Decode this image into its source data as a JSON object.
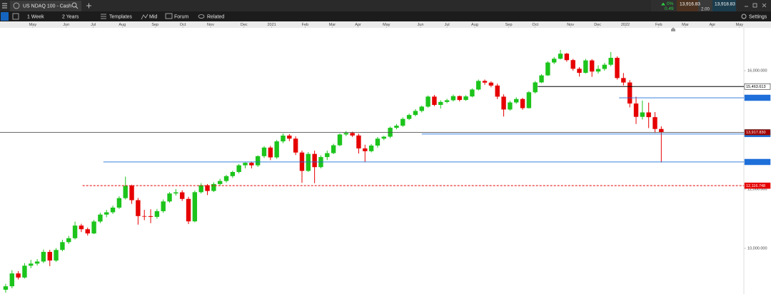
{
  "app": {
    "tab_title": "US NDAQ 100 - Cash",
    "quote": {
      "change": "0%",
      "change_value": "0.49",
      "sell": "13,916.83",
      "spread": "2.00",
      "buy": "13,918.83"
    }
  },
  "toolbar": {
    "interval": "1 Week",
    "range": "2 Years",
    "templates": "Templates",
    "price_type": "Mid",
    "forum": "Forum",
    "related": "Related",
    "settings": "Settings"
  },
  "chart_data": {
    "type": "candlestick",
    "up_color": "#1cc41c",
    "down_color": "#e60000",
    "xlim": [
      -0.9,
      117.1
    ],
    "ylim": [
      8457.8,
      17445.8
    ],
    "xticks": [
      {
        "value": 4.3,
        "label": "May"
      },
      {
        "value": 9.6,
        "label": "Jun"
      },
      {
        "value": 13.9,
        "label": "Jul"
      },
      {
        "value": 18.5,
        "label": "Aug"
      },
      {
        "value": 23.7,
        "label": "Sep"
      },
      {
        "value": 28.1,
        "label": "Oct"
      },
      {
        "value": 32.5,
        "label": "Nov"
      },
      {
        "value": 37.8,
        "label": "Dec"
      },
      {
        "value": 42.2,
        "label": "2021"
      },
      {
        "value": 47.5,
        "label": "Feb"
      },
      {
        "value": 51.8,
        "label": "Mar"
      },
      {
        "value": 55.9,
        "label": "Apr"
      },
      {
        "value": 60.4,
        "label": "May"
      },
      {
        "value": 65.8,
        "label": "Jun"
      },
      {
        "value": 70,
        "label": "Jul"
      },
      {
        "value": 74.4,
        "label": "Aug"
      },
      {
        "value": 79.8,
        "label": "Sep"
      },
      {
        "value": 84,
        "label": "Oct"
      },
      {
        "value": 89.6,
        "label": "Nov"
      },
      {
        "value": 93.9,
        "label": "Dec"
      },
      {
        "value": 98.3,
        "label": "2022"
      },
      {
        "value": 103.6,
        "label": "Feb"
      },
      {
        "value": 107.8,
        "label": "Mar"
      },
      {
        "value": 112.1,
        "label": "Apr"
      },
      {
        "value": 116.4,
        "label": "May"
      }
    ],
    "yticks": [
      {
        "value": 10000,
        "label": "10,000.000"
      },
      {
        "value": 12000,
        "label": "12,000.000"
      },
      {
        "value": 16000,
        "label": "16,000.000"
      }
    ],
    "open": [
      8600,
      8719,
      9152,
      9014,
      9413,
      9485,
      9555,
      9880,
      9588,
      9946,
      10209,
      10342,
      10768,
      10645,
      10503,
      10905,
      11140,
      11217,
      11375,
      11695,
      12111,
      11626,
      11089,
      11087,
      11062,
      11255,
      11583,
      11852,
      11891,
      11668,
      10911,
      11896,
      12129,
      11937,
      12171,
      12274,
      12438,
      12578,
      12804,
      12888,
      12803,
      13112,
      13403,
      13071,
      13612,
      13807,
      13704,
      13235,
      12615,
      13188,
      12742,
      13082,
      13215,
      13480,
      13845,
      13896,
      13810,
      13374,
      13280,
      13470,
      13704,
      13770,
      14070,
      14141,
      14370,
      14503,
      14640,
      14785,
      15124,
      14843,
      14943,
      15000,
      15140,
      15010,
      15130,
      15363,
      15653,
      15596,
      15496,
      15122,
      14688,
      14926,
      15042,
      14735,
      15270,
      15603,
      15840,
      16275,
      16402,
      16573,
      16356,
      16064,
      15926,
      16345,
      15970,
      16058,
      16200,
      16433,
      15750,
      15600,
      14890,
      14440,
      14590,
      14430,
      14030
    ],
    "high": [
      8800,
      9260,
      9230,
      9500,
      9610,
      9640,
      9960,
      9950,
      10010,
      10290,
      10420,
      10900,
      10830,
      10700,
      10960,
      11200,
      11300,
      11440,
      11760,
      12420,
      12150,
      11700,
      11300,
      11320,
      11330,
      11650,
      11900,
      12000,
      11960,
      11740,
      11950,
      12200,
      12170,
      12230,
      12350,
      12480,
      12620,
      12850,
      12900,
      12930,
      13140,
      13450,
      13460,
      13660,
      13880,
      13860,
      13780,
      13300,
      13250,
      13300,
      13140,
      13300,
      13530,
      13880,
      13960,
      13940,
      13870,
      13500,
      13520,
      13760,
      13800,
      14110,
      14200,
      14420,
      14550,
      14700,
      14820,
      15160,
      15180,
      15000,
      15050,
      15190,
      15160,
      15170,
      15400,
      15700,
      15700,
      15640,
      15560,
      15200,
      14980,
      15100,
      15080,
      15310,
      15650,
      15880,
      16320,
      16460,
      16700,
      16600,
      16400,
      16120,
      16400,
      16390,
      16180,
      16260,
      16630,
      16480,
      15920,
      15680,
      15120,
      14990,
      14920,
      14600,
      14120
    ],
    "low": [
      8500,
      8650,
      8950,
      8980,
      9330,
      9420,
      9500,
      9400,
      9540,
      9900,
      10150,
      10300,
      10550,
      10430,
      10480,
      10850,
      11050,
      11160,
      11330,
      11650,
      11500,
      10800,
      10950,
      10850,
      11000,
      11200,
      11540,
      11780,
      11600,
      10820,
      10880,
      11850,
      11800,
      11900,
      12120,
      12220,
      12380,
      12530,
      12700,
      12700,
      12750,
      13050,
      12980,
      13020,
      13550,
      13620,
      13150,
      12210,
      12580,
      12200,
      12700,
      12980,
      13180,
      13450,
      13790,
      13760,
      13200,
      12920,
      13240,
      13400,
      13650,
      13720,
      14020,
      14100,
      14330,
      14460,
      14590,
      14750,
      14800,
      14720,
      14900,
      14960,
      14960,
      14980,
      15100,
      15330,
      15520,
      15440,
      15040,
      14450,
      14650,
      14880,
      14680,
      14720,
      15230,
      15580,
      15820,
      16220,
      16380,
      16300,
      16000,
      15800,
      15900,
      15790,
      15900,
      16000,
      16150,
      15700,
      15500,
      14760,
      14200,
      14350,
      14060,
      13900,
      12900
    ],
    "close": [
      8719,
      9152,
      9014,
      9413,
      9485,
      9555,
      9880,
      9588,
      9946,
      10209,
      10342,
      10768,
      10645,
      10503,
      10905,
      11140,
      11217,
      11375,
      11695,
      12111,
      11626,
      11089,
      11087,
      11062,
      11255,
      11583,
      11852,
      11891,
      11668,
      10911,
      11896,
      12129,
      11937,
      12171,
      12274,
      12438,
      12578,
      12804,
      12888,
      12803,
      13112,
      13403,
      13071,
      13612,
      13807,
      13704,
      13235,
      12615,
      13188,
      12742,
      13082,
      13215,
      13480,
      13845,
      13896,
      13810,
      13374,
      13280,
      13470,
      13704,
      13770,
      14070,
      14141,
      14370,
      14503,
      14640,
      14785,
      15124,
      14843,
      14943,
      15000,
      15140,
      15010,
      15130,
      15363,
      15653,
      15596,
      15496,
      15122,
      14688,
      14926,
      15042,
      14735,
      15270,
      15603,
      15840,
      16275,
      16402,
      16573,
      16356,
      16064,
      15926,
      16345,
      15970,
      16058,
      16200,
      16433,
      15750,
      15600,
      14890,
      14440,
      14590,
      14430,
      14030,
      13918
    ],
    "levels": [
      {
        "value": 15463.613,
        "label": "15,463.613",
        "from": 84.4,
        "color": "#000000",
        "dash": false
      },
      {
        "value": 15084,
        "from": 97.3,
        "color": "#1e6fd9",
        "dash": false
      },
      {
        "value": 13860,
        "from": 66,
        "color": "#1e6fd9",
        "dash": false
      },
      {
        "value": 12916,
        "from": 15.5,
        "color": "#1e6fd9",
        "dash": false
      },
      {
        "value": 12116.748,
        "label": "12,116.748",
        "from": 12.2,
        "color": "#e60000",
        "dash": true
      },
      {
        "value": 13917.83,
        "label": "13,917.830",
        "from": -0.9,
        "color": "#555555",
        "dash": false,
        "box": "#a00000"
      }
    ]
  }
}
